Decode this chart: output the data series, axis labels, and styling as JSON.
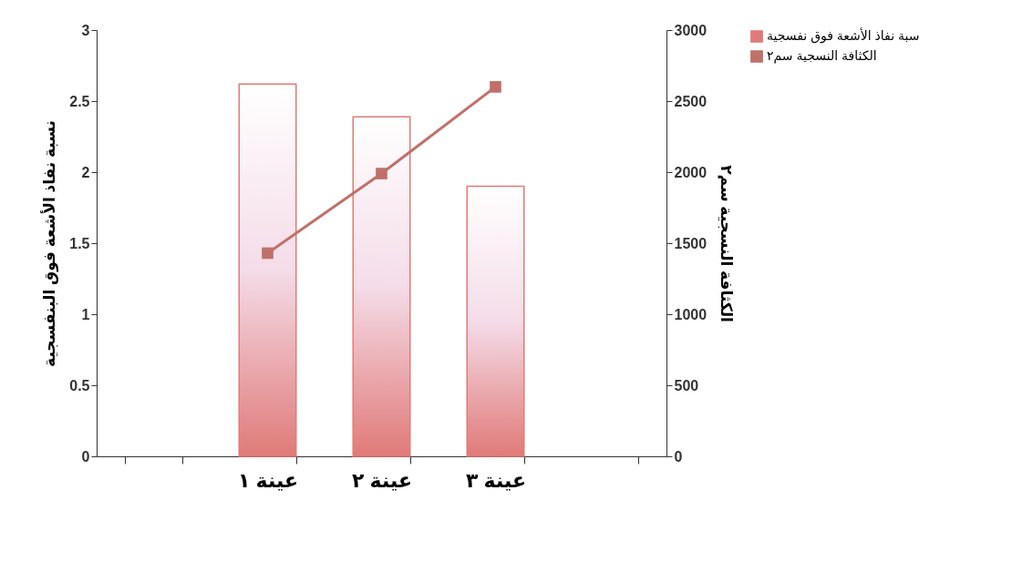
{
  "chart_data": {
    "type": "bar",
    "ylabel": "نسبة نفاذ الأشعة فوق البنفسجية",
    "y2label": "الكثافة النسجية سم٢",
    "categories": [
      null,
      "عينة ١",
      "عينة ٢",
      "عينة ٣",
      null
    ],
    "series": [
      {
        "name": "سبة نفاذ الأشعة فوق نفسجية",
        "color": "#e07a78",
        "values": [
          null,
          2.62,
          2.39,
          1.9,
          null
        ]
      },
      {
        "name": "الكثافة النسجية سم٢",
        "type": "line",
        "axis": "y2",
        "color": "#c0706a",
        "values": [
          null,
          1430,
          1990,
          2600,
          null
        ]
      }
    ],
    "ylim": [
      0,
      3
    ],
    "yticks": [
      0,
      0.5,
      1,
      1.5,
      2,
      2.5,
      3
    ],
    "y2lim": [
      0,
      3000
    ],
    "y2ticks": [
      0,
      500,
      1000,
      1500,
      2000,
      2500,
      3000
    ],
    "marker": "square",
    "legend": "right",
    "grid": false
  }
}
